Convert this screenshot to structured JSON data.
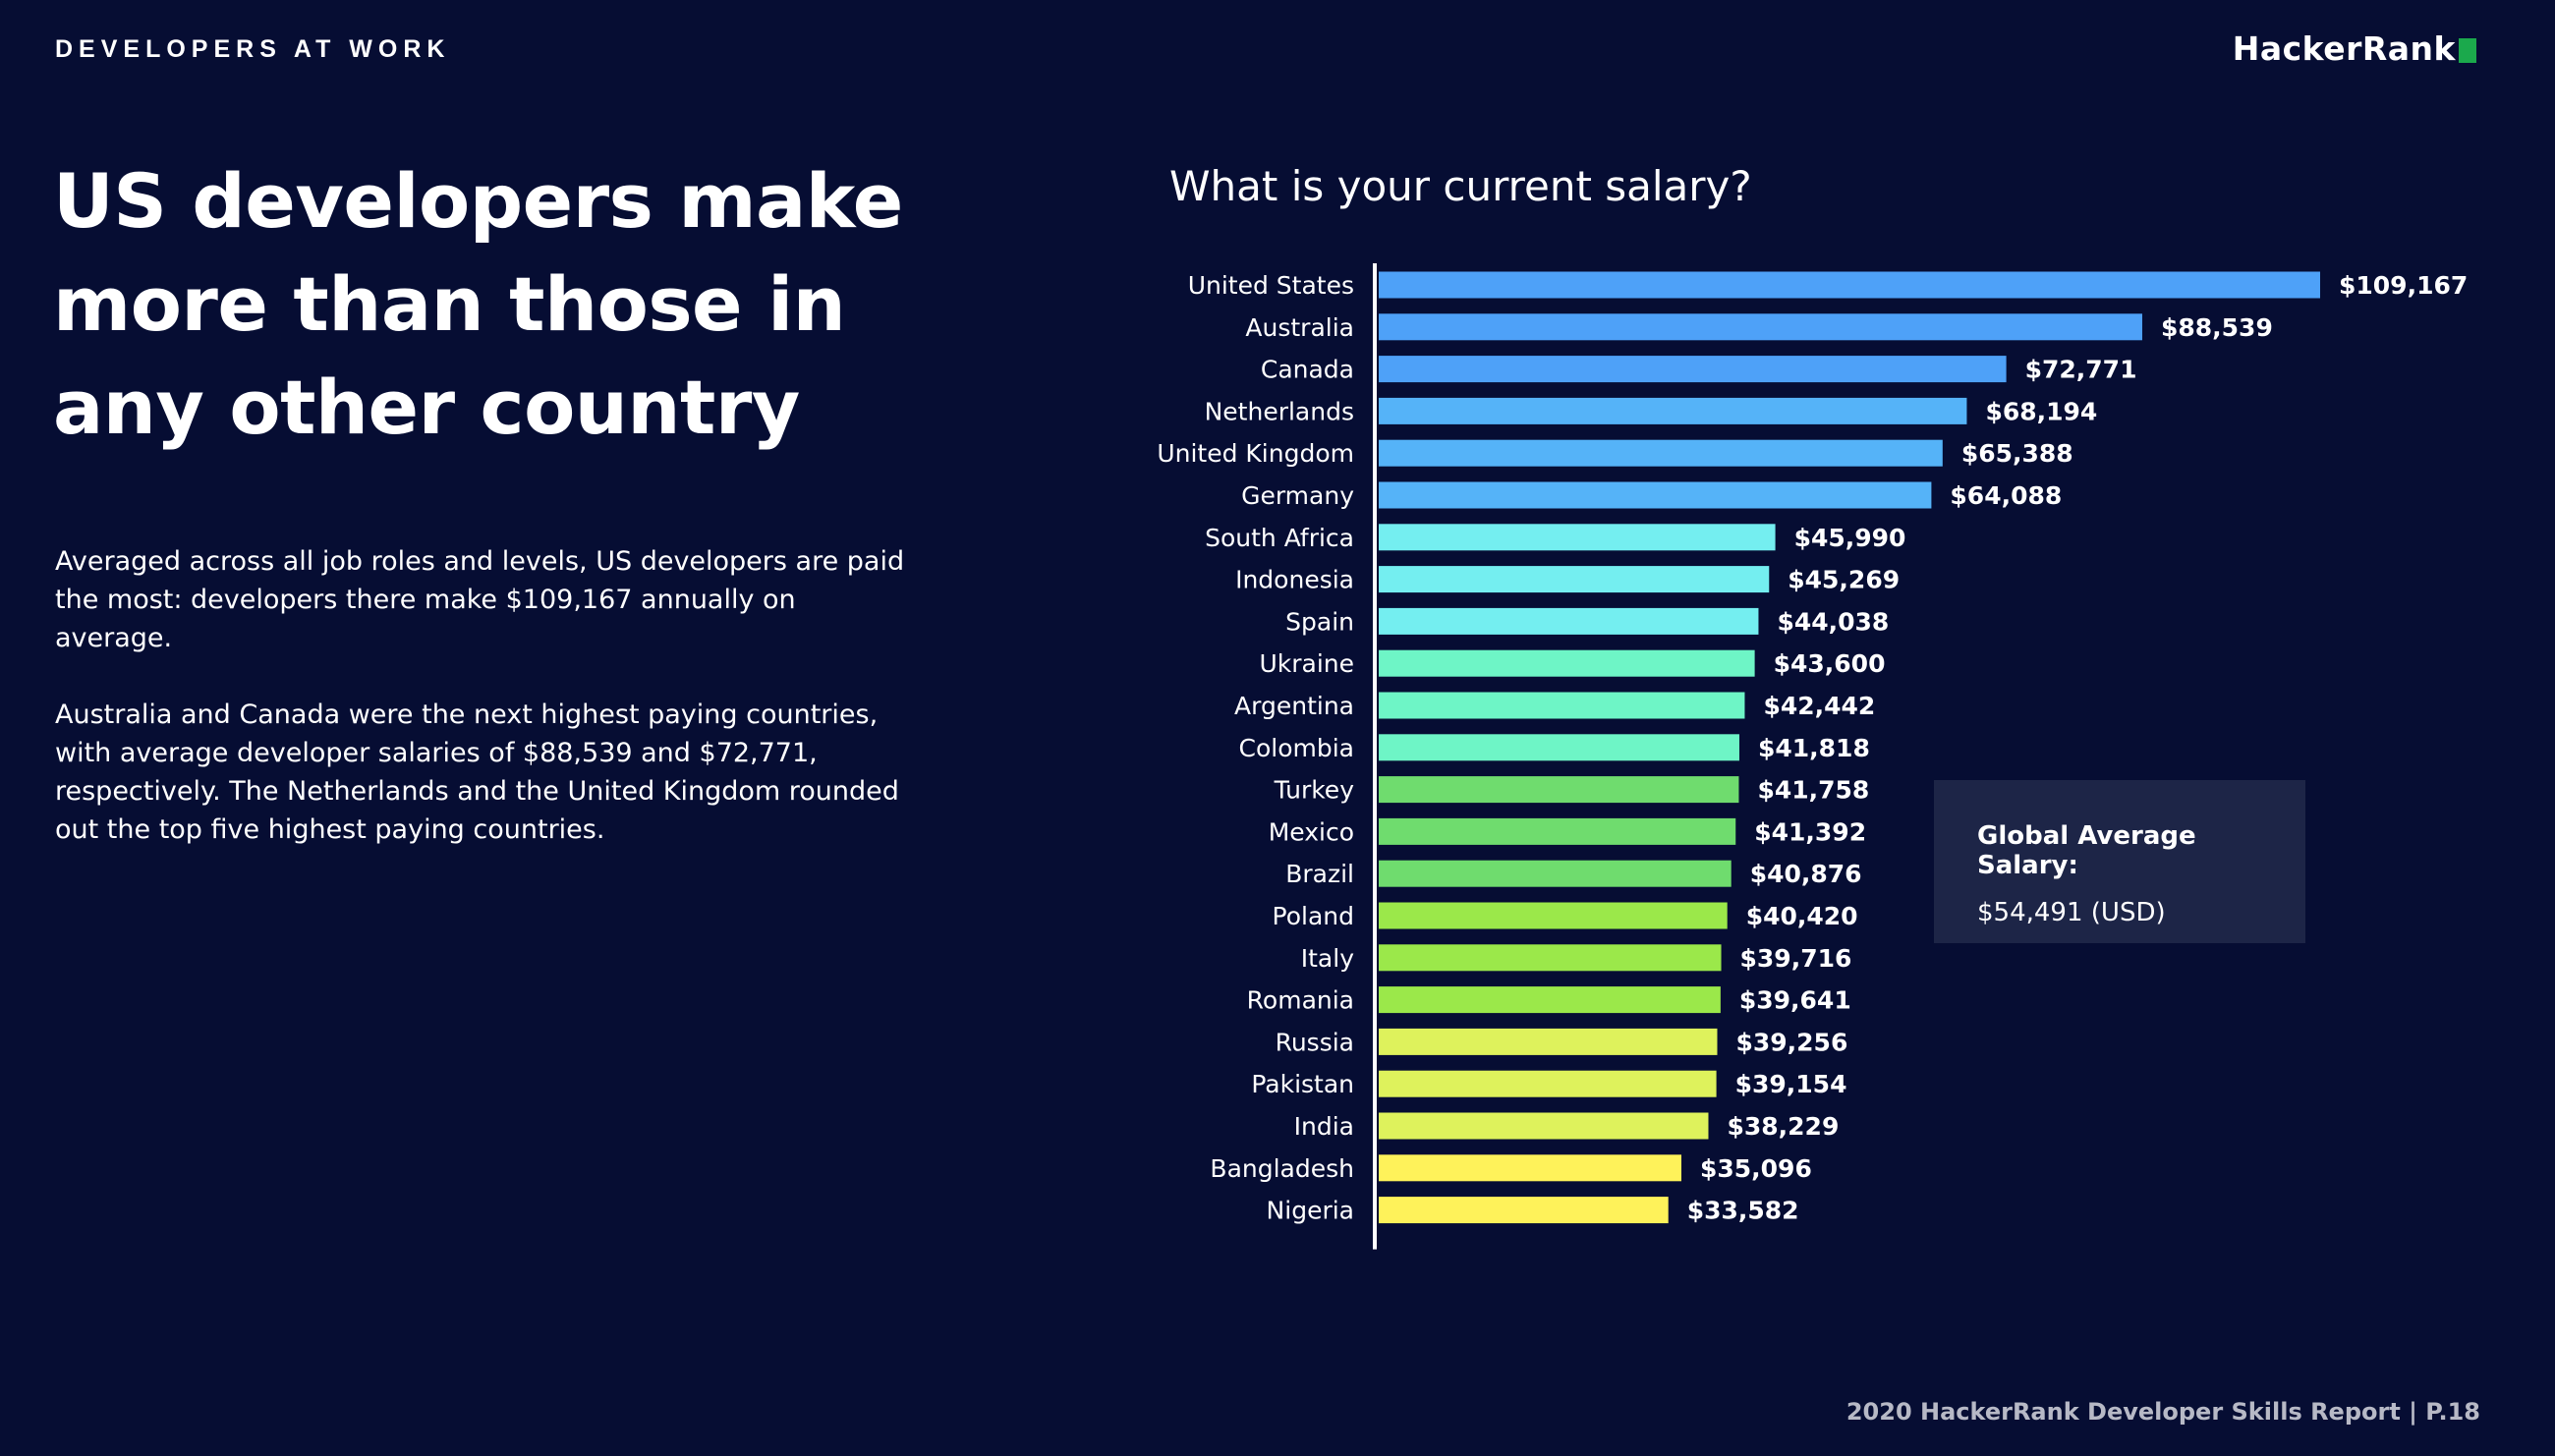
{
  "header": {
    "section_label": "DEVELOPERS AT WORK",
    "logo_text": "HackerRank"
  },
  "main": {
    "headline": "US developers make more than those in any other country",
    "paragraphs": [
      "Averaged across all job roles and levels, US developers are paid the most: developers there make $109,167 annually on average.",
      "Australia and Canada were the next highest paying countries, with average developer salaries of $88,539 and $72,771, respectively. The Netherlands and the United Kingdom rounded out the top five highest paying countries."
    ]
  },
  "callout": {
    "title": "Global Average Salary:",
    "value": "$54,491 (USD)"
  },
  "footer": {
    "text": "2020 HackerRank Developer Skills Report  |  P.18"
  },
  "colors": {
    "background": "#060d33",
    "logo_accent": "#1ba94c",
    "callout_bg": "#1d2547"
  },
  "chart_data": {
    "type": "bar",
    "orientation": "horizontal",
    "title": "What is your current salary?",
    "xlabel": "",
    "ylabel": "",
    "grid": false,
    "categories": [
      "United States",
      "Australia",
      "Canada",
      "Netherlands",
      "United Kingdom",
      "Germany",
      "South Africa",
      "Indonesia",
      "Spain",
      "Ukraine",
      "Argentina",
      "Colombia",
      "Turkey",
      "Mexico",
      "Brazil",
      "Poland",
      "Italy",
      "Romania",
      "Russia",
      "Pakistan",
      "India",
      "Bangladesh",
      "Nigeria"
    ],
    "values": [
      109167,
      88539,
      72771,
      68194,
      65388,
      64088,
      45990,
      45269,
      44038,
      43600,
      42442,
      41818,
      41758,
      41392,
      40876,
      40420,
      39716,
      39641,
      39256,
      39154,
      38229,
      35096,
      33582
    ],
    "value_labels": [
      "$109,167",
      "$88,539",
      "$72,771",
      "$68,194",
      "$65,388",
      "$64,088",
      "$45,990",
      "$45,269",
      "$44,038",
      "$43,600",
      "$42,442",
      "$41,818",
      "$41,758",
      "$41,392",
      "$40,876",
      "$40,420",
      "$39,716",
      "$39,641",
      "$39,256",
      "$39,154",
      "$38,229",
      "$35,096",
      "$33,582"
    ],
    "bar_colors": [
      "#4ea1f8",
      "#4ea1f8",
      "#4ea1f8",
      "#55b3f8",
      "#55b3f8",
      "#55b3f8",
      "#74eef0",
      "#74eef0",
      "#74eef0",
      "#6ef5c6",
      "#6ef5c6",
      "#6ef5c6",
      "#6fdc6e",
      "#6fdc6e",
      "#6fdc6e",
      "#9be84a",
      "#9be84a",
      "#9be84a",
      "#def25c",
      "#def25c",
      "#def25c",
      "#fef25a",
      "#fef25a"
    ],
    "xlim": [
      0,
      109167
    ]
  }
}
